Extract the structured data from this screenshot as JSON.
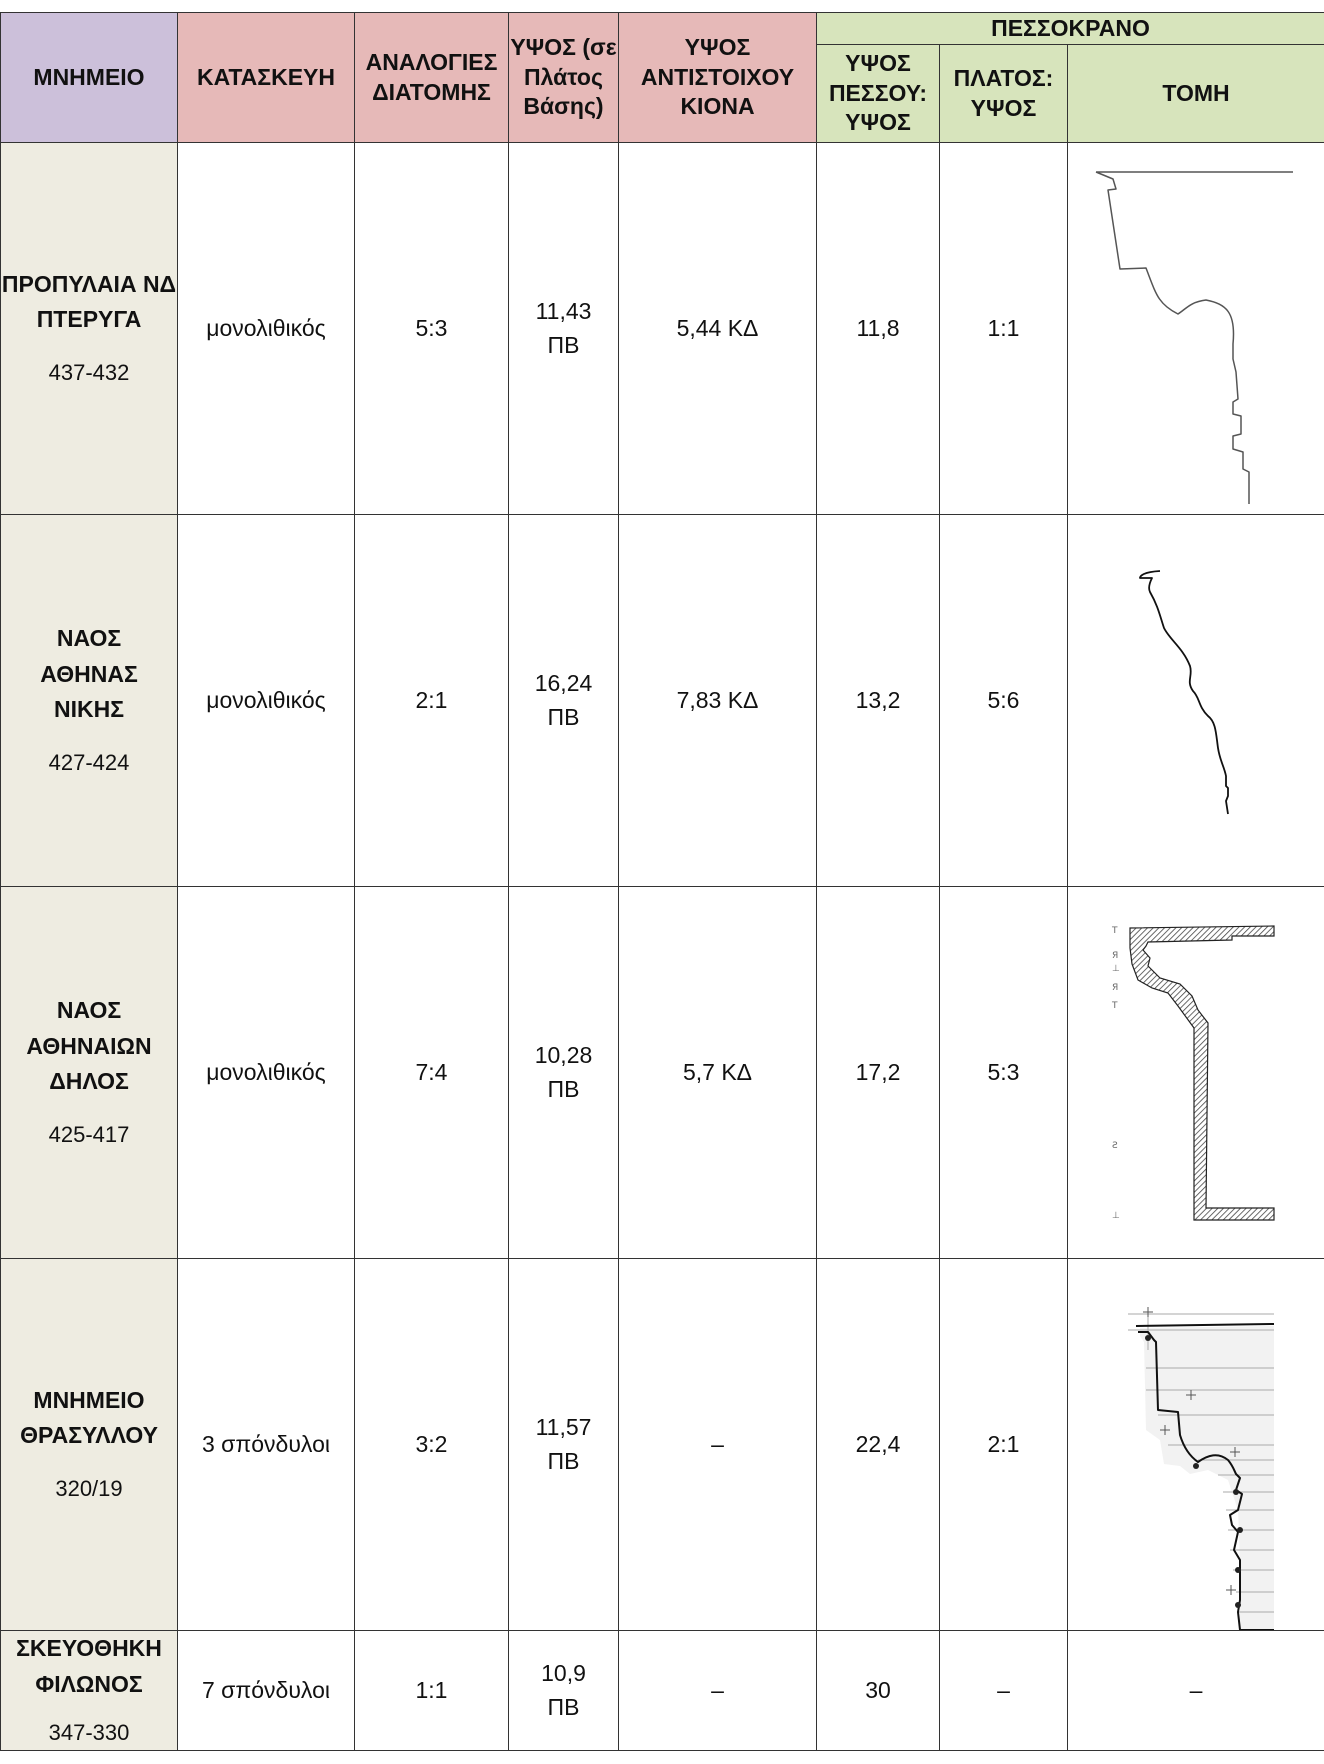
{
  "headers": {
    "monument": "ΜΝΗΜΕΙΟ",
    "construction": "ΚΑΤΑΣΚΕΥΗ",
    "proportions": "ΑΝΑΛΟΓΙΕΣ ΔΙΑΤΟΜΗΣ",
    "height_base": "ΥΨΟΣ (σε Πλάτος Βάσης)",
    "column_height": "ΥΨΟΣ ΑΝΤΙΣΤΟΙΧΟΥ ΚΙΟΝΑ",
    "group": "ΠΕΣΣΟΚΡΑΝΟ",
    "pier_height": "ΥΨΟΣ ΠΕΣΣΟΥ: ΥΨΟΣ",
    "width_height": "ΠΛΑΤΟΣ: ΥΨΟΣ",
    "section": "ΤΟΜΗ"
  },
  "rows": [
    {
      "name": "ΠΡΟΠΥΛΑΙΑ ΝΔ ΠΤΕΡΥΓΑ",
      "date": "437-432",
      "construction": "μονολιθικός",
      "proportions": "5:3",
      "height_base": "11,43 ΠΒ",
      "column_height": "5,44 ΚΔ",
      "pier_height": "11,8",
      "width_height": "1:1",
      "section_icon": "profile-propylaia-icon"
    },
    {
      "name": "ΝΑΟΣ ΑΘΗΝΑΣ ΝΙΚΗΣ",
      "date": "427-424",
      "construction": "μονολιθικός",
      "proportions": "2:1",
      "height_base": "16,24 ΠΒ",
      "column_height": "7,83 ΚΔ",
      "pier_height": "13,2",
      "width_height": "5:6",
      "section_icon": "profile-athena-nike-icon"
    },
    {
      "name": "ΝΑΟΣ ΑΘΗΝΑΙΩΝ ΔΗΛΟΣ",
      "date": "425-417",
      "construction": "μονολιθικός",
      "proportions": "7:4",
      "height_base": "10,28 ΠΒ",
      "column_height": "5,7 ΚΔ",
      "pier_height": "17,2",
      "width_height": "5:3",
      "section_icon": "profile-delos-icon"
    },
    {
      "name": "ΜΝΗΜΕΙΟ ΘΡΑΣΥΛΛΟΥ",
      "date": "320/19",
      "construction": "3 σπόνδυλοι",
      "proportions": "3:2",
      "height_base": "11,57 ΠΒ",
      "column_height": "–",
      "pier_height": "22,4",
      "width_height": "2:1",
      "section_icon": "profile-thrasyllos-icon"
    },
    {
      "name": "ΣΚΕΥΟΘΗΚΗ ΦΙΛΩΝΟΣ",
      "date": "347-330",
      "construction": "7 σπόνδυλοι",
      "proportions": "1:1",
      "height_base": "10,9 ΠΒ",
      "column_height": "–",
      "pier_height": "30",
      "width_height": "–",
      "section": "–"
    }
  ]
}
